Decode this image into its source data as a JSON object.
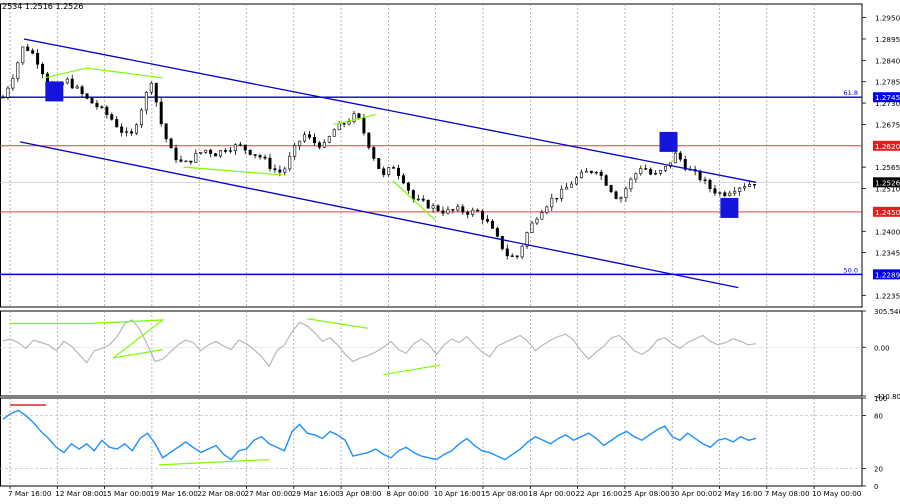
{
  "header": {
    "ohlc_text": "2534 1.2516 1.2526"
  },
  "colors": {
    "candles": "#000000",
    "channel": "#0000cc",
    "resistance": "#e04040",
    "divergence": "#7cfc00",
    "cci": "#b8b8b8",
    "rsi": "#1e90ff",
    "marker": "#1414dd",
    "grid": "#888888",
    "price_label_bg": "#000000",
    "fib_label": "#0000ff"
  },
  "chart_data": [
    {
      "type": "candlestick",
      "symbol_panel": "price",
      "ylim": [
        1.2205,
        1.2985
      ],
      "price_ticks": [
        "1.2950",
        "1.2895",
        "1.2840",
        "1.2785",
        "1.2730",
        "1.2675",
        "1.2565",
        "1.2510",
        "1.2400",
        "1.2345",
        "1.2235"
      ],
      "x_labels": [
        "7 Mar 16:00",
        "12 Mar 08:00",
        "15 Mar 00:00",
        "19 Mar 16:00",
        "22 Mar 08:00",
        "27 Mar 00:00",
        "29 Mar 16:00",
        "3 Apr 08:00",
        "8 Apr 00:00",
        "10 Apr 16:00",
        "15 Apr 08:00",
        "18 Apr 00:00",
        "22 Apr 16:00",
        "25 Apr 08:00",
        "30 Apr 00:00",
        "2 May 16:00",
        "7 May 08:00",
        "10 May 00:00"
      ],
      "close_path": [
        [
          0,
          1.2745
        ],
        [
          6,
          1.281
        ],
        [
          11,
          1.288
        ],
        [
          17,
          1.285
        ],
        [
          22,
          1.28
        ],
        [
          27,
          1.276
        ],
        [
          33,
          1.279
        ],
        [
          38,
          1.277
        ],
        [
          44,
          1.274
        ],
        [
          50,
          1.272
        ],
        [
          57,
          1.269
        ],
        [
          62,
          1.266
        ],
        [
          67,
          1.264
        ],
        [
          73,
          1.272
        ],
        [
          78,
          1.279
        ],
        [
          84,
          1.266
        ],
        [
          89,
          1.26
        ],
        [
          95,
          1.257
        ],
        [
          100,
          1.259
        ],
        [
          106,
          1.261
        ],
        [
          112,
          1.26
        ],
        [
          118,
          1.2615
        ],
        [
          124,
          1.262
        ],
        [
          130,
          1.2605
        ],
        [
          136,
          1.259
        ],
        [
          142,
          1.256
        ],
        [
          147,
          1.255
        ],
        [
          152,
          1.26
        ],
        [
          158,
          1.265
        ],
        [
          163,
          1.263
        ],
        [
          169,
          1.262
        ],
        [
          174,
          1.266
        ],
        [
          180,
          1.268
        ],
        [
          186,
          1.27
        ],
        [
          191,
          1.264
        ],
        [
          196,
          1.258
        ],
        [
          200,
          1.254
        ],
        [
          205,
          1.257
        ],
        [
          211,
          1.253
        ],
        [
          216,
          1.248
        ],
        [
          222,
          1.247
        ],
        [
          227,
          1.246
        ],
        [
          233,
          1.245
        ],
        [
          239,
          1.2455
        ],
        [
          244,
          1.245
        ],
        [
          250,
          1.245
        ],
        [
          255,
          1.242
        ],
        [
          260,
          1.238
        ],
        [
          265,
          1.234
        ],
        [
          270,
          1.233
        ],
        [
          276,
          1.24
        ],
        [
          282,
          1.245
        ],
        [
          288,
          1.248
        ],
        [
          294,
          1.25
        ],
        [
          300,
          1.253
        ],
        [
          306,
          1.255
        ],
        [
          312,
          1.256
        ],
        [
          318,
          1.252
        ],
        [
          324,
          1.248
        ],
        [
          330,
          1.253
        ],
        [
          336,
          1.257
        ],
        [
          342,
          1.254
        ],
        [
          348,
          1.256
        ],
        [
          354,
          1.26
        ],
        [
          360,
          1.256
        ],
        [
          366,
          1.254
        ],
        [
          372,
          1.251
        ],
        [
          378,
          1.2495
        ],
        [
          384,
          1.251
        ],
        [
          390,
          1.252
        ],
        [
          396,
          1.2526
        ]
      ],
      "levels": [
        {
          "label": "1.2745",
          "value": 1.2745,
          "kind": "fib",
          "fib_label": "61.8",
          "color": "#0000cc"
        },
        {
          "label": "1.2620",
          "value": 1.262,
          "kind": "resistance",
          "color": "#e04040"
        },
        {
          "label": "1.2450",
          "value": 1.245,
          "kind": "resistance",
          "color": "#e04040"
        },
        {
          "label": "1.2289",
          "value": 1.2289,
          "kind": "fib",
          "fib_label": "50.0",
          "color": "#0000cc"
        }
      ],
      "current_price": "1.2526",
      "channel": {
        "upper": [
          [
            11,
            1.2895
          ],
          [
            396,
            1.2526
          ]
        ],
        "lower": [
          [
            9,
            1.263
          ],
          [
            392,
            1.2255
          ]
        ]
      },
      "divergence_lines_price": [
        [
          [
            22,
            1.2795
          ],
          [
            44,
            1.282
          ],
          [
            84,
            1.2795
          ]
        ],
        [
          [
            95,
            1.2565
          ],
          [
            147,
            1.2545
          ]
        ],
        [
          [
            174,
            1.2675
          ],
          [
            196,
            1.27
          ]
        ],
        [
          [
            205,
            1.253
          ],
          [
            227,
            1.243
          ]
        ]
      ],
      "markers": [
        {
          "at": [
            27,
            1.276
          ]
        },
        {
          "at": [
            350,
            1.263
          ]
        },
        {
          "at": [
            382,
            1.246
          ]
        }
      ]
    },
    {
      "type": "line",
      "symbol_panel": "cci",
      "ylim": [
        -410.803,
        305.5401
      ],
      "ticks": [
        "305.5401",
        "0.00",
        "-410.803"
      ],
      "series": [
        {
          "values": [
            55,
            70,
            40,
            -10,
            60,
            40,
            20,
            -30,
            50,
            10,
            -60,
            -130,
            -30,
            -10,
            20,
            90,
            200,
            230,
            150,
            20,
            -120,
            -100,
            -40,
            20,
            60,
            40,
            -30,
            20,
            50,
            10,
            -20,
            60,
            30,
            -20,
            -80,
            -160,
            -30,
            20,
            130,
            210,
            180,
            120,
            50,
            80,
            20,
            -60,
            -120,
            -90,
            -70,
            -40,
            0,
            50,
            -20,
            -50,
            30,
            70,
            20,
            -60,
            20,
            70,
            40,
            90,
            20,
            -40,
            -80,
            10,
            40,
            70,
            100,
            50,
            -30,
            20,
            60,
            90,
            110,
            60,
            -30,
            -100,
            -40,
            10,
            80,
            100,
            40,
            -30,
            -60,
            -20,
            60,
            80,
            30,
            -10,
            40,
            70,
            100,
            50,
            20,
            40,
            70,
            50,
            20,
            30
          ]
        }
      ],
      "divergence_lines": [
        [
          [
            4,
            200
          ],
          [
            44,
            200
          ],
          [
            84,
            230
          ],
          [
            58,
            -90
          ],
          [
            84,
            -20
          ]
        ],
        [
          [
            160,
            240
          ],
          [
            192,
            160
          ]
        ],
        [
          [
            200,
            -230
          ],
          [
            230,
            -150
          ]
        ]
      ]
    },
    {
      "type": "line",
      "symbol_panel": "rsi",
      "ylim": [
        0,
        100
      ],
      "ticks": [
        "100",
        "80",
        "20",
        "0"
      ],
      "series": [
        {
          "values": [
            76,
            82,
            86,
            80,
            72,
            62,
            54,
            44,
            38,
            48,
            42,
            48,
            40,
            52,
            44,
            42,
            48,
            40,
            54,
            60,
            48,
            32,
            38,
            44,
            50,
            44,
            38,
            42,
            46,
            36,
            30,
            40,
            42,
            52,
            56,
            48,
            44,
            40,
            62,
            70,
            60,
            58,
            54,
            62,
            58,
            52,
            34,
            36,
            38,
            42,
            36,
            32,
            40,
            44,
            38,
            34,
            32,
            30,
            36,
            40,
            48,
            54,
            46,
            40,
            38,
            34,
            30,
            36,
            42,
            50,
            56,
            52,
            48,
            54,
            58,
            52,
            56,
            60,
            54,
            46,
            52,
            58,
            62,
            56,
            52,
            58,
            64,
            68,
            56,
            52,
            60,
            54,
            48,
            44,
            52,
            54,
            50,
            56,
            52,
            54
          ]
        }
      ],
      "divergence_lines": [
        [
          [
            82,
            24
          ],
          [
            140,
            30
          ]
        ]
      ]
    }
  ]
}
